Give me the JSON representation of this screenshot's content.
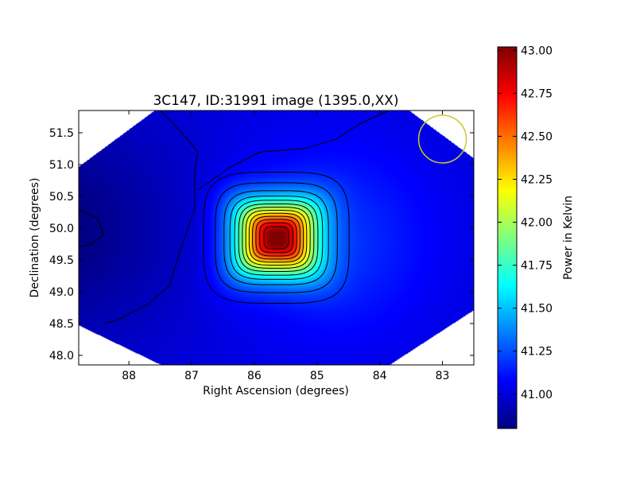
{
  "chart_data": {
    "type": "heatmap",
    "title": "3C147, ID:31991 image (1395.0,XX)",
    "xlabel": "Right Ascension (degrees)",
    "ylabel": "Declination (degrees)",
    "colorbar_label": "Power in Kelvin",
    "xlim": [
      88.8,
      82.5
    ],
    "ylim": [
      47.85,
      51.85
    ],
    "x_inverted": true,
    "x_ticks": [
      {
        "value": 88,
        "label": "88"
      },
      {
        "value": 87,
        "label": "87"
      },
      {
        "value": 86,
        "label": "86"
      },
      {
        "value": 85,
        "label": "85"
      },
      {
        "value": 84,
        "label": "84"
      },
      {
        "value": 83,
        "label": "83"
      }
    ],
    "y_ticks": [
      {
        "value": 48.0,
        "label": "48.0"
      },
      {
        "value": 48.5,
        "label": "48.5"
      },
      {
        "value": 49.0,
        "label": "49.0"
      },
      {
        "value": 49.5,
        "label": "49.5"
      },
      {
        "value": 50.0,
        "label": "50.0"
      },
      {
        "value": 50.5,
        "label": "50.5"
      },
      {
        "value": 51.0,
        "label": "51.0"
      },
      {
        "value": 51.5,
        "label": "51.5"
      }
    ],
    "colorbar": {
      "colormap": "jet",
      "range": [
        40.8,
        43.02
      ],
      "ticks": [
        {
          "value": 41.0,
          "label": "41.00"
        },
        {
          "value": 41.25,
          "label": "41.25"
        },
        {
          "value": 41.5,
          "label": "41.50"
        },
        {
          "value": 41.75,
          "label": "41.75"
        },
        {
          "value": 42.0,
          "label": "42.00"
        },
        {
          "value": 42.25,
          "label": "42.25"
        },
        {
          "value": 42.5,
          "label": "42.50"
        },
        {
          "value": 42.75,
          "label": "42.75"
        },
        {
          "value": 43.0,
          "label": "43.00"
        }
      ]
    },
    "source": {
      "ra": 85.65,
      "dec": 49.85,
      "peak": 43.0
    },
    "background_level": 41.0,
    "beam_circle": {
      "ra": 83.0,
      "dec": 51.4,
      "radius_deg": 0.38,
      "color": "#c8c832"
    },
    "grid": false
  }
}
